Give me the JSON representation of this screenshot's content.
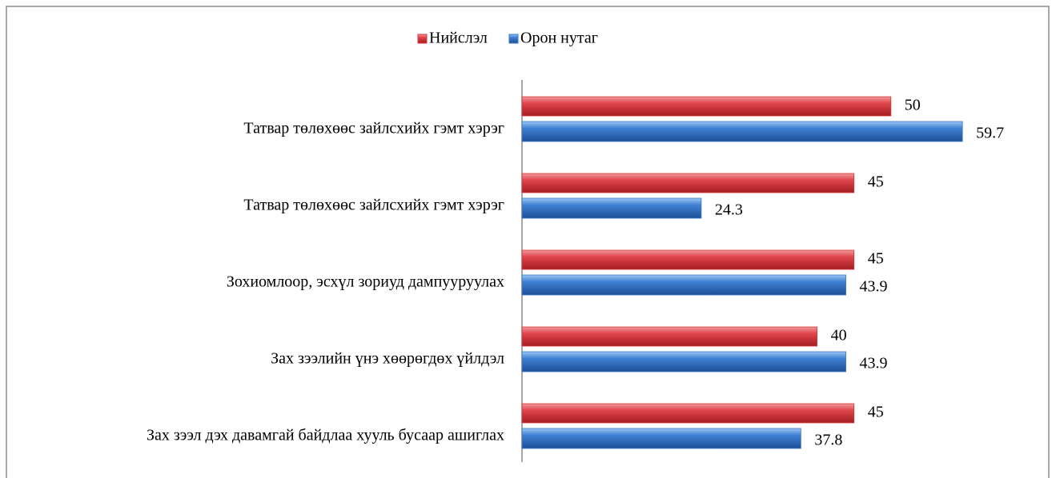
{
  "chart_data": {
    "type": "bar",
    "orientation": "horizontal",
    "categories": [
      "Татвар төлөхөөс зайлсхийх гэмт хэрэг",
      "Татвар төлөхөөс зайлсхийх гэмт хэрэг",
      "Зохиомлоор, эсхүл зориуд дампууруулах",
      "Зах зээлийн үнэ хөөрөгдөх үйлдэл",
      "Зах зээл дэх давамгай байдлаа хууль бусаар ашиглах"
    ],
    "series": [
      {
        "name": "Нийслэл",
        "color": "#d9363b",
        "values": [
          50,
          45,
          45,
          40,
          45
        ]
      },
      {
        "name": "Орон нутаг",
        "color": "#3a78cc",
        "values": [
          59.7,
          24.3,
          43.9,
          43.9,
          37.8
        ]
      }
    ],
    "xlim": [
      0,
      65
    ],
    "legend": "top"
  }
}
